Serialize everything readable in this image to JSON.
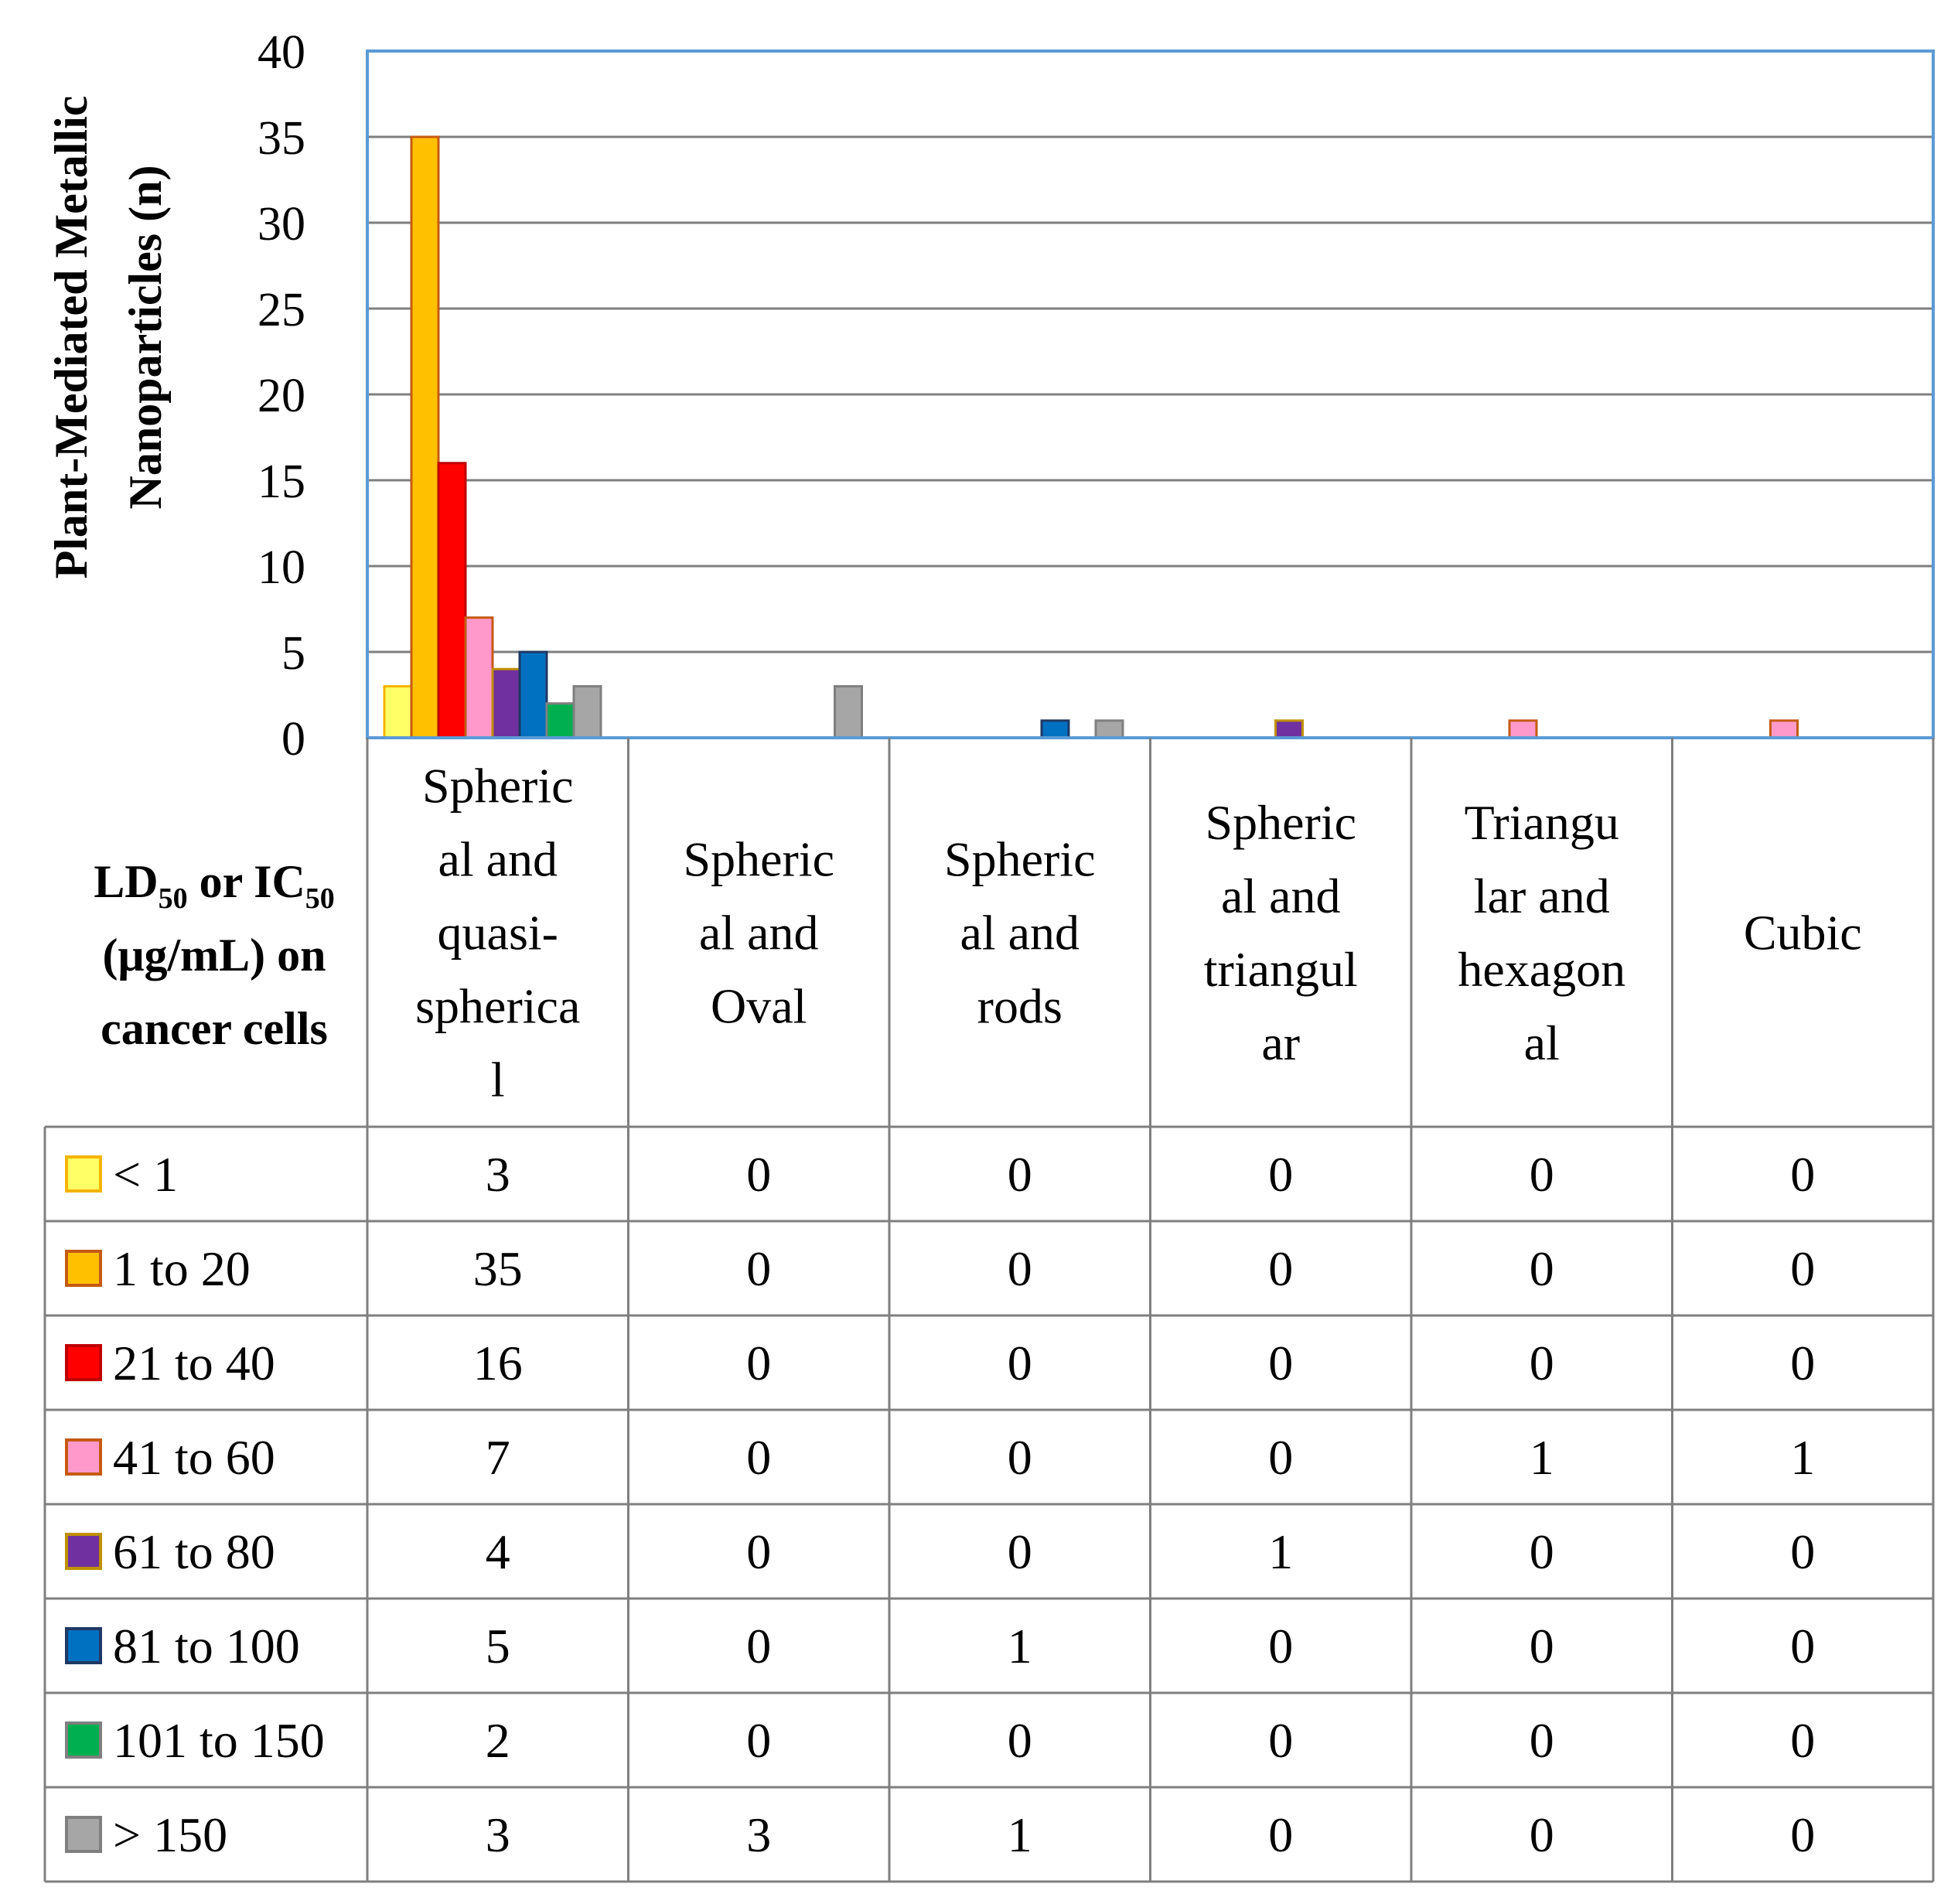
{
  "chart_data": {
    "type": "bar",
    "ylabel": "Plant-Mediated Metallic Nanoparticles (n)",
    "ylabel_lines": [
      "Plant-Mediated Metallic",
      "Nanoparticles (n)"
    ],
    "ylim": [
      0,
      40
    ],
    "yticks": [
      0,
      5,
      10,
      15,
      20,
      25,
      30,
      35,
      40
    ],
    "grid": true,
    "table_header": {
      "line1_a": "LD",
      "line1_sub1": "50",
      "line1_b": " or IC",
      "line1_sub2": "50",
      "line2": "(μg/mL) on",
      "line3": "cancer cells"
    },
    "categories": [
      "Spherical and quasi-spherical",
      "Spherical and Oval",
      "Spherical and rods",
      "Spherical and triangular",
      "Triangular and hexagonal",
      "Cubic"
    ],
    "category_lines": [
      [
        "Spheric",
        "al and",
        "quasi-",
        "spherica",
        "l"
      ],
      [
        "Spheric",
        "al and",
        "Oval"
      ],
      [
        "Spheric",
        "al and",
        "rods"
      ],
      [
        "Spheric",
        "al and",
        "triangul",
        "ar"
      ],
      [
        "Triangu",
        "lar and",
        "hexagon",
        "al"
      ],
      [
        "Cubic"
      ]
    ],
    "series": [
      {
        "name": "< 1",
        "color": "#FFFF66",
        "stroke": "#F5B400",
        "values": [
          3,
          0,
          0,
          0,
          0,
          0
        ]
      },
      {
        "name": "1 to 20",
        "color": "#FFC000",
        "stroke": "#C55A11",
        "values": [
          35,
          0,
          0,
          0,
          0,
          0
        ]
      },
      {
        "name": "21 to 40",
        "color": "#FF0000",
        "stroke": "#C00000",
        "values": [
          16,
          0,
          0,
          0,
          0,
          0
        ]
      },
      {
        "name": "41 to 60",
        "color": "#FF99CC",
        "stroke": "#C55A11",
        "values": [
          7,
          0,
          0,
          0,
          1,
          1
        ]
      },
      {
        "name": "61 to 80",
        "color": "#7030A0",
        "stroke": "#BF9000",
        "values": [
          4,
          0,
          0,
          1,
          0,
          0
        ]
      },
      {
        "name": "81 to 100",
        "color": "#0070C0",
        "stroke": "#1F3864",
        "values": [
          5,
          0,
          1,
          0,
          0,
          0
        ]
      },
      {
        "name": "101 to 150",
        "color": "#00B050",
        "stroke": "#808080",
        "values": [
          2,
          0,
          0,
          0,
          0,
          0
        ]
      },
      {
        "name": "> 150",
        "color": "#A6A6A6",
        "stroke": "#7F7F7F",
        "values": [
          3,
          3,
          1,
          0,
          0,
          0
        ]
      }
    ],
    "colors": {
      "plot_border": "#5B9BD5",
      "gridline": "#7F7F7F",
      "table_line": "#7F7F7F"
    }
  }
}
